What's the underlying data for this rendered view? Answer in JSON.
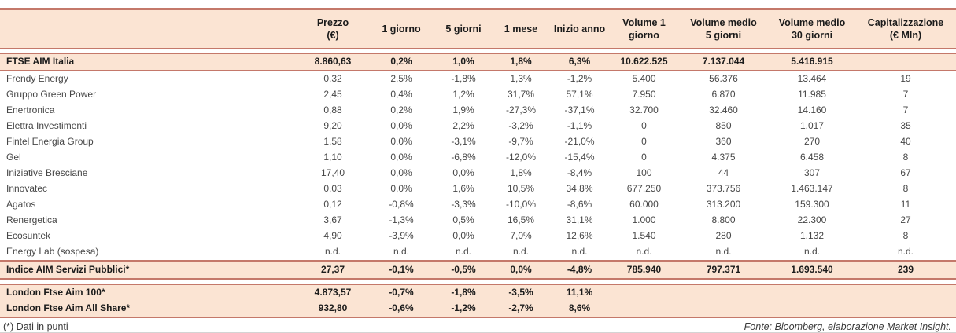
{
  "accent_colors": {
    "border": "#c4786a",
    "band_background": "#fbe4d3"
  },
  "table": {
    "columns": [
      {
        "line1": "",
        "line2": ""
      },
      {
        "line1": "Prezzo",
        "line2": "(€)"
      },
      {
        "line1": "1 giorno",
        "line2": ""
      },
      {
        "line1": "5 giorni",
        "line2": ""
      },
      {
        "line1": "1 mese",
        "line2": ""
      },
      {
        "line1": "Inizio anno",
        "line2": ""
      },
      {
        "line1": "Volume 1",
        "line2": "giorno"
      },
      {
        "line1": "Volume medio",
        "line2": "5 giorni"
      },
      {
        "line1": "Volume medio",
        "line2": "30 giorni"
      },
      {
        "line1": "Capitalizzazione",
        "line2": "(€ Mln)"
      }
    ],
    "index_row": {
      "name": "FTSE AIM Italia",
      "values": [
        "8.860,63",
        "0,2%",
        "1,0%",
        "1,8%",
        "6,3%",
        "10.622.525",
        "7.137.044",
        "5.416.915",
        ""
      ]
    },
    "company_rows": [
      {
        "name": "Frendy Energy",
        "values": [
          "0,32",
          "2,5%",
          "-1,8%",
          "1,3%",
          "-1,2%",
          "5.400",
          "56.376",
          "13.464",
          "19"
        ]
      },
      {
        "name": "Gruppo Green Power",
        "values": [
          "2,45",
          "0,4%",
          "1,2%",
          "31,7%",
          "57,1%",
          "7.950",
          "6.870",
          "11.985",
          "7"
        ]
      },
      {
        "name": "Enertronica",
        "values": [
          "0,88",
          "0,2%",
          "1,9%",
          "-27,3%",
          "-37,1%",
          "32.700",
          "32.460",
          "14.160",
          "7"
        ]
      },
      {
        "name": "Elettra Investimenti",
        "values": [
          "9,20",
          "0,0%",
          "2,2%",
          "-3,2%",
          "-1,1%",
          "0",
          "850",
          "1.017",
          "35"
        ]
      },
      {
        "name": "Fintel Energia Group",
        "values": [
          "1,58",
          "0,0%",
          "-3,1%",
          "-9,7%",
          "-21,0%",
          "0",
          "360",
          "270",
          "40"
        ]
      },
      {
        "name": "Gel",
        "values": [
          "1,10",
          "0,0%",
          "-6,8%",
          "-12,0%",
          "-15,4%",
          "0",
          "4.375",
          "6.458",
          "8"
        ]
      },
      {
        "name": "Iniziative Bresciane",
        "values": [
          "17,40",
          "0,0%",
          "0,0%",
          "1,8%",
          "-8,4%",
          "100",
          "44",
          "307",
          "67"
        ]
      },
      {
        "name": "Innovatec",
        "values": [
          "0,03",
          "0,0%",
          "1,6%",
          "10,5%",
          "34,8%",
          "677.250",
          "373.756",
          "1.463.147",
          "8"
        ]
      },
      {
        "name": "Agatos",
        "values": [
          "0,12",
          "-0,8%",
          "-3,3%",
          "-10,0%",
          "-8,6%",
          "60.000",
          "313.200",
          "159.300",
          "11"
        ]
      },
      {
        "name": "Renergetica",
        "values": [
          "3,67",
          "-1,3%",
          "0,5%",
          "16,5%",
          "31,1%",
          "1.000",
          "8.800",
          "22.300",
          "27"
        ]
      },
      {
        "name": "Ecosuntek",
        "values": [
          "4,90",
          "-3,9%",
          "0,0%",
          "7,0%",
          "12,6%",
          "1.540",
          "280",
          "1.132",
          "8"
        ]
      },
      {
        "name": "Energy Lab (sospesa)",
        "values": [
          "n.d.",
          "n.d.",
          "n.d.",
          "n.d.",
          "n.d.",
          "n.d.",
          "n.d.",
          "n.d.",
          "n.d."
        ]
      }
    ],
    "servizi_row": {
      "name": "Indice AIM Servizi Pubblici*",
      "values": [
        "27,37",
        "-0,1%",
        "-0,5%",
        "0,0%",
        "-4,8%",
        "785.940",
        "797.371",
        "1.693.540",
        "239"
      ]
    },
    "london_rows": [
      {
        "name": "London Ftse Aim 100*",
        "values": [
          "4.873,57",
          "-0,7%",
          "-1,8%",
          "-3,5%",
          "11,1%",
          "",
          "",
          "",
          ""
        ]
      },
      {
        "name": "London Ftse Aim All Share*",
        "values": [
          "932,80",
          "-0,6%",
          "-1,2%",
          "-2,7%",
          "8,6%",
          "",
          "",
          "",
          ""
        ]
      }
    ]
  },
  "footer": {
    "left": "(*) Dati in punti",
    "right": "Fonte: Bloomberg, elaborazione Market Insight."
  }
}
